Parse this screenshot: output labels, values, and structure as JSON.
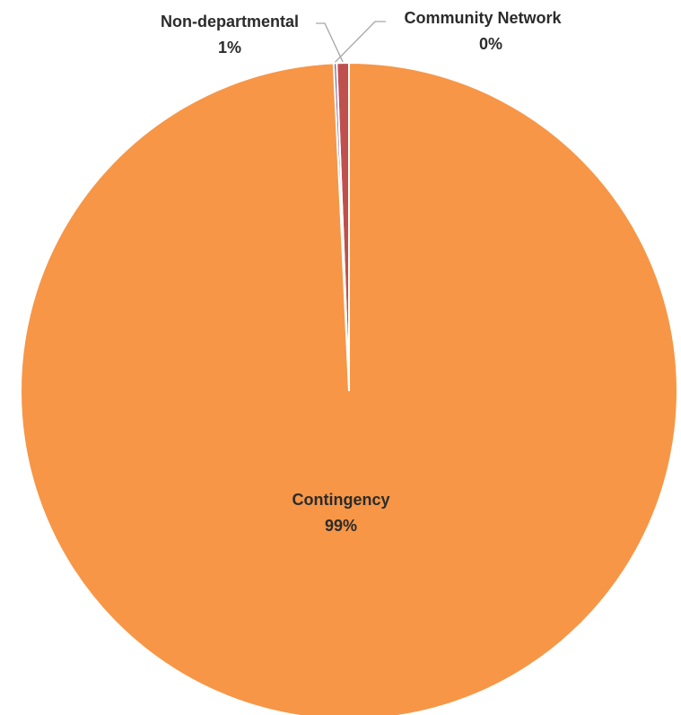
{
  "chart_data": {
    "type": "pie",
    "title": "",
    "slices": [
      {
        "label": "Non-departmental",
        "percent_label": "1%",
        "value": 0.6,
        "color": "#c0504d"
      },
      {
        "label": "Community Network",
        "percent_label": "0%",
        "value": 0.15,
        "color": "#8064a2"
      },
      {
        "label": "Contingency",
        "percent_label": "99%",
        "value": 99.25,
        "color": "#f79646"
      }
    ],
    "start_angle_deg": 0,
    "direction": "counterclockwise",
    "legend": "none",
    "data_labels": "category-and-percent"
  }
}
